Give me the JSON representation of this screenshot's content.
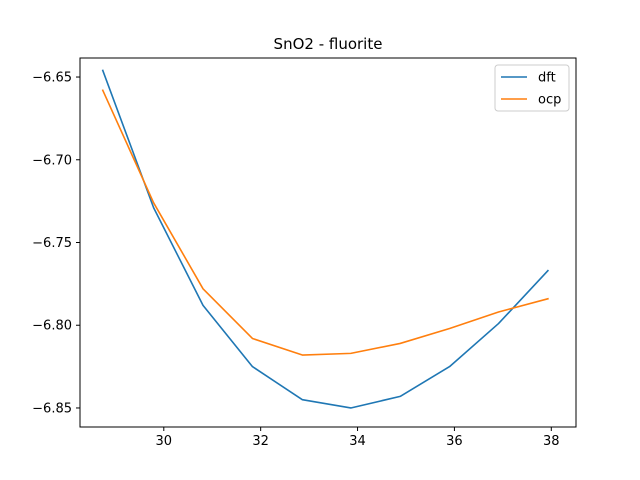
{
  "chart_data": {
    "type": "line",
    "title": "SnO2 - fluorite",
    "xlabel": "",
    "ylabel": "",
    "xlim": [
      28.27,
      38.51
    ],
    "ylim": [
      -6.8615,
      -6.6385
    ],
    "xticks": [
      30,
      32,
      34,
      36,
      38
    ],
    "xtick_labels": [
      "30",
      "32",
      "34",
      "36",
      "38"
    ],
    "yticks": [
      -6.85,
      -6.8,
      -6.75,
      -6.7,
      -6.65
    ],
    "ytick_labels": [
      "−6.85",
      "−6.80",
      "−6.75",
      "−6.70",
      "−6.65"
    ],
    "legend_position": "top-right",
    "grid": false,
    "x": [
      28.74,
      29.79,
      30.81,
      31.83,
      32.86,
      33.86,
      34.88,
      35.9,
      36.91,
      37.93
    ],
    "series": [
      {
        "name": "dft",
        "color": "#1f77b4",
        "values": [
          -6.646,
          -6.729,
          -6.788,
          -6.825,
          -6.845,
          -6.85,
          -6.843,
          -6.825,
          -6.799,
          -6.767
        ]
      },
      {
        "name": "ocp",
        "color": "#ff7f0e",
        "values": [
          -6.658,
          -6.726,
          -6.778,
          -6.808,
          -6.818,
          -6.817,
          -6.811,
          -6.802,
          -6.792,
          -6.784
        ]
      }
    ]
  }
}
